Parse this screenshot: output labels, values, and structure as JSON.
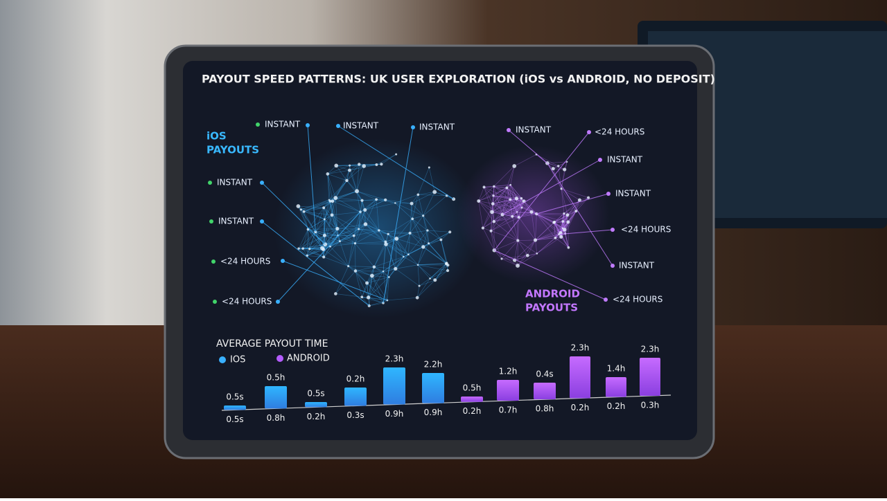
{
  "title": "PAYOUT SPEED PATTERNS: UK USER EXPLORATION (iOS vs ANDROID, NO DEPOSIT)",
  "ios_group": {
    "label_lines": [
      "iOS",
      "PAYOUTS"
    ],
    "nodes": [
      "INSTANT",
      "INSTANT",
      "INSTANT",
      "INSTANT",
      "INSTANT",
      "<24 HOURS",
      "<24 HOURS"
    ]
  },
  "android_group": {
    "label_lines": [
      "ANDROID",
      "PAYOUTS"
    ],
    "nodes": [
      "INSTANT",
      "<24 HOURS",
      "INSTANT",
      "INSTANT",
      "<24 HOURS",
      "INSTANT",
      "<24 HOURS"
    ]
  },
  "bar_panel": {
    "title": "AVERAGE PAYOUT TIME",
    "legend": [
      "IOS",
      "ANDROID"
    ],
    "top_labels": [
      "0.5s",
      "0.5h",
      "0.5s",
      "0.2h",
      "2.3h",
      "2.2h",
      "0.5h",
      "1.2h",
      "0.4s",
      "2.3h",
      "1.4h",
      "2.3h"
    ],
    "bottom_labels": [
      "0.5s",
      "0.8h",
      "0.2h",
      "0.3s",
      "0.9h",
      "0.9h",
      "0.2h",
      "0.7h",
      "0.8h",
      "0.2h",
      "0.2h",
      "0.3h"
    ]
  }
}
